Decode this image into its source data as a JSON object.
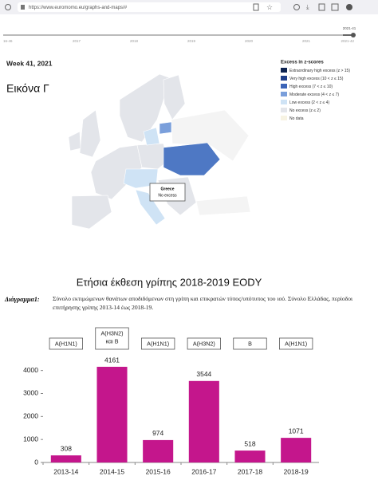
{
  "browser": {
    "url": "https://www.euromomo.eu/graphs-and-maps/#"
  },
  "timeline": {
    "start": "16-46",
    "years": [
      "2017",
      "2018",
      "2019",
      "2020",
      "2021"
    ],
    "current": "2021-41",
    "end": "2021-42"
  },
  "map": {
    "week": "Week 41, 2021",
    "label": "Εικόνα Γ",
    "legend_title": "Excess in z-scores",
    "legend": [
      "Extraordinary high excess (z > 15)",
      "Very high excess (10 < z ≤ 15)",
      "High excess (7 < z ≤ 10)",
      "Moderate excess (4 < z ≤ 7)",
      "Low excess (2 < z ≤ 4)",
      "No excess (z ≤ 2)",
      "No data"
    ],
    "tooltip": {
      "country": "Greece",
      "status": "No excess"
    }
  },
  "report": {
    "title": "Ετήσια έκθεση γρίπης 2018-2019 EODY",
    "figure_label": "Διάγραμμα1:",
    "caption": "Σύνολο εκτιμώμενων θανάτων αποδιδόμενων στη γρίπη και επικρατών τύπος/υπότυπος του ιού. Σύνολο Ελλάδας, περίοδοι επιτήρησης γρίπης 2013-14 έως 2018-19."
  },
  "chart_data": {
    "type": "bar",
    "categories": [
      "2013-14",
      "2014-15",
      "2015-16",
      "2016-17",
      "2017-18",
      "2018-19"
    ],
    "values": [
      308,
      4161,
      974,
      3544,
      518,
      1071
    ],
    "annotations": [
      "A(H1N1)",
      "A(H3N2) και B",
      "A(H1N1)",
      "A(H3N2)",
      "B",
      "A(H1N1)"
    ],
    "color": "#c4168c",
    "ylim": [
      0,
      4300
    ],
    "yticks": [
      0,
      1000,
      2000,
      3000,
      4000
    ],
    "grid": false
  }
}
